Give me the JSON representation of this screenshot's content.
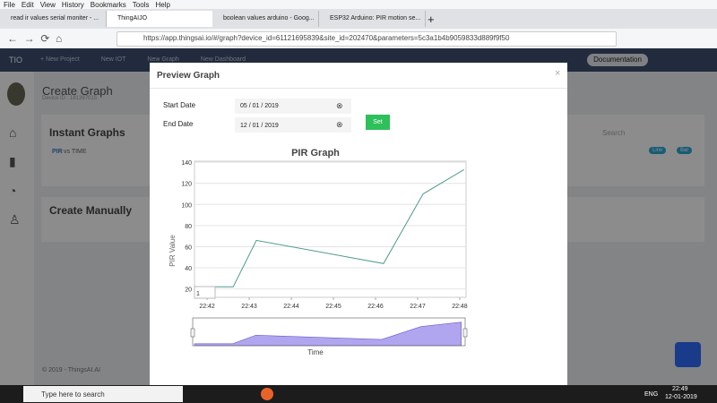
{
  "browser": {
    "menu": [
      "File",
      "Edit",
      "View",
      "History",
      "Bookmarks",
      "Tools",
      "Help"
    ],
    "tabs": [
      "read ir values serial moniter - ...",
      "ThingAIJO",
      "boolean values arduino - Goog...",
      "ESP32 Arduino: PIR motion se..."
    ],
    "url": "https://app.thingsai.io/#/graph?device_id=61121695839&site_id=202470&parameters=5c3a1b4b9059833d889f9f50"
  },
  "app": {
    "brand": "TIO",
    "nav": [
      "+ New Project",
      "New IOT",
      "New Graph",
      "New Dashboard"
    ],
    "documentation": "Documentation",
    "page_title": "Create Graph",
    "device_id": "Device ID : 181397015",
    "instant_graphs": "Instant Graphs",
    "graph_param": "PIR",
    "graph_rest": "vs TIME",
    "search": "Search",
    "line_btn": "Line",
    "bar_btn": "Bar",
    "create_manually": "Create Manually",
    "footer": "© 2019 - ThingsAI.AI"
  },
  "modal": {
    "title": "Preview Graph",
    "close": "×",
    "start_label": "Start Date",
    "start_value": "05 / 01 / 2019",
    "end_label": "End Date",
    "end_value": "12 / 01 / 2019",
    "set": "Set",
    "chart": {
      "type": "line",
      "title": "PIR Graph",
      "y_label": "PIR Value",
      "x_label": "Time",
      "range_input": "1",
      "x": [
        1361.7,
        1362.62,
        1363.17,
        1366.19,
        1367.13,
        1368.1
      ],
      "values": [
        22,
        22,
        66,
        44,
        110,
        133
      ],
      "xlim": [
        1361.7,
        1368.15
      ],
      "ylim": [
        12,
        141
      ],
      "xticks": [
        {
          "value": 1362,
          "label": "22:42"
        },
        {
          "value": 1363,
          "label": "22:43"
        },
        {
          "value": 1364,
          "label": "22:44"
        },
        {
          "value": 1365,
          "label": "22:45"
        },
        {
          "value": 1366,
          "label": "22:46"
        },
        {
          "value": 1367,
          "label": "22:47"
        },
        {
          "value": 1368,
          "label": "22:48"
        }
      ],
      "yticks": [
        20,
        40,
        60,
        80,
        100,
        120,
        140
      ],
      "grid": true,
      "color": "#4f9a8c",
      "navigator_color": "#8f7fe8"
    }
  },
  "taskbar": {
    "search": "Type here to search",
    "lang": "ENG",
    "time": "22:49",
    "date": "12-01-2019"
  }
}
